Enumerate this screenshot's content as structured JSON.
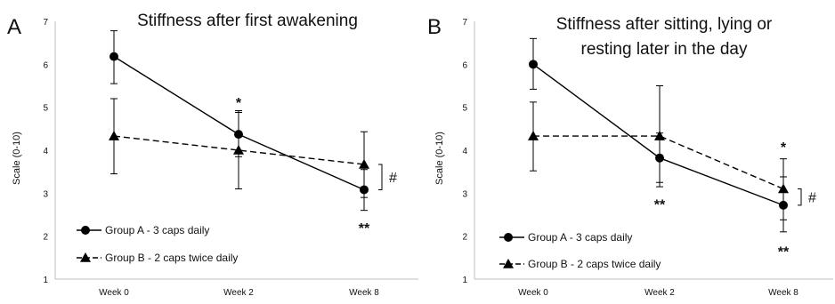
{
  "chart_data": [
    {
      "panel": "A",
      "type": "line",
      "title": "Stiffness after first awakening",
      "title_lines": [
        "Stiffness after first awakening"
      ],
      "xlabel": "",
      "ylabel": "Scale (0-10)",
      "categories": [
        "Week 0",
        "Week 2",
        "Week 8"
      ],
      "ylim": [
        1,
        7
      ],
      "yticks": [
        "1",
        "2",
        "3",
        "4",
        "5",
        "6",
        "7"
      ],
      "grid": false,
      "legend_placement": "bottom-left",
      "series": [
        {
          "name": "Group A - 3 caps daily",
          "marker": "circle",
          "line": "solid",
          "values": [
            6.18,
            4.37,
            3.08
          ],
          "err_low": [
            5.55,
            3.85,
            2.6
          ],
          "err_high": [
            6.78,
            4.92,
            3.55
          ]
        },
        {
          "name": "Group B - 2 caps twice daily",
          "marker": "triangle",
          "line": "dashed",
          "values": [
            4.33,
            4.0,
            3.67
          ],
          "err_low": [
            3.45,
            3.1,
            2.9
          ],
          "err_high": [
            5.2,
            4.88,
            4.43
          ]
        }
      ],
      "annotations": [
        {
          "text": "*",
          "category": "Week 2",
          "y": 5.12,
          "ref": "point"
        },
        {
          "text": "**",
          "category": "Week 8",
          "y": 2.2,
          "ref": "point"
        },
        {
          "text": "#",
          "category": "Week 8",
          "y": 3.35,
          "ref": "bracket"
        }
      ]
    },
    {
      "panel": "B",
      "type": "line",
      "title": "Stiffness after sitting, lying or resting later in the day",
      "title_lines": [
        "Stiffness after sitting, lying or",
        "resting later in the day"
      ],
      "xlabel": "",
      "ylabel": "Scale (0-10)",
      "categories": [
        "Week 0",
        "Week 2",
        "Week 8"
      ],
      "ylim": [
        1,
        7
      ],
      "yticks": [
        "1",
        "2",
        "3",
        "4",
        "5",
        "6",
        "7"
      ],
      "grid": false,
      "legend_placement": "bottom-left",
      "series": [
        {
          "name": "Group A - 3 caps daily",
          "marker": "circle",
          "line": "solid",
          "values": [
            6.0,
            3.82,
            2.72
          ],
          "err_low": [
            5.42,
            3.25,
            2.1
          ],
          "err_high": [
            6.6,
            4.4,
            3.38
          ]
        },
        {
          "name": "Group B - 2 caps twice daily",
          "marker": "triangle",
          "line": "dashed",
          "values": [
            4.33,
            4.33,
            3.1
          ],
          "err_low": [
            3.52,
            3.15,
            2.38
          ],
          "err_high": [
            5.12,
            5.5,
            3.8
          ]
        }
      ],
      "annotations": [
        {
          "text": "**",
          "category": "Week 2",
          "y": 2.75,
          "ref": "point"
        },
        {
          "text": "*",
          "category": "Week 8",
          "y": 4.08,
          "ref": "point"
        },
        {
          "text": "**",
          "category": "Week 8",
          "y": 1.65,
          "ref": "point"
        },
        {
          "text": "#",
          "category": "Week 8",
          "y": 2.92,
          "ref": "bracket"
        }
      ]
    }
  ]
}
